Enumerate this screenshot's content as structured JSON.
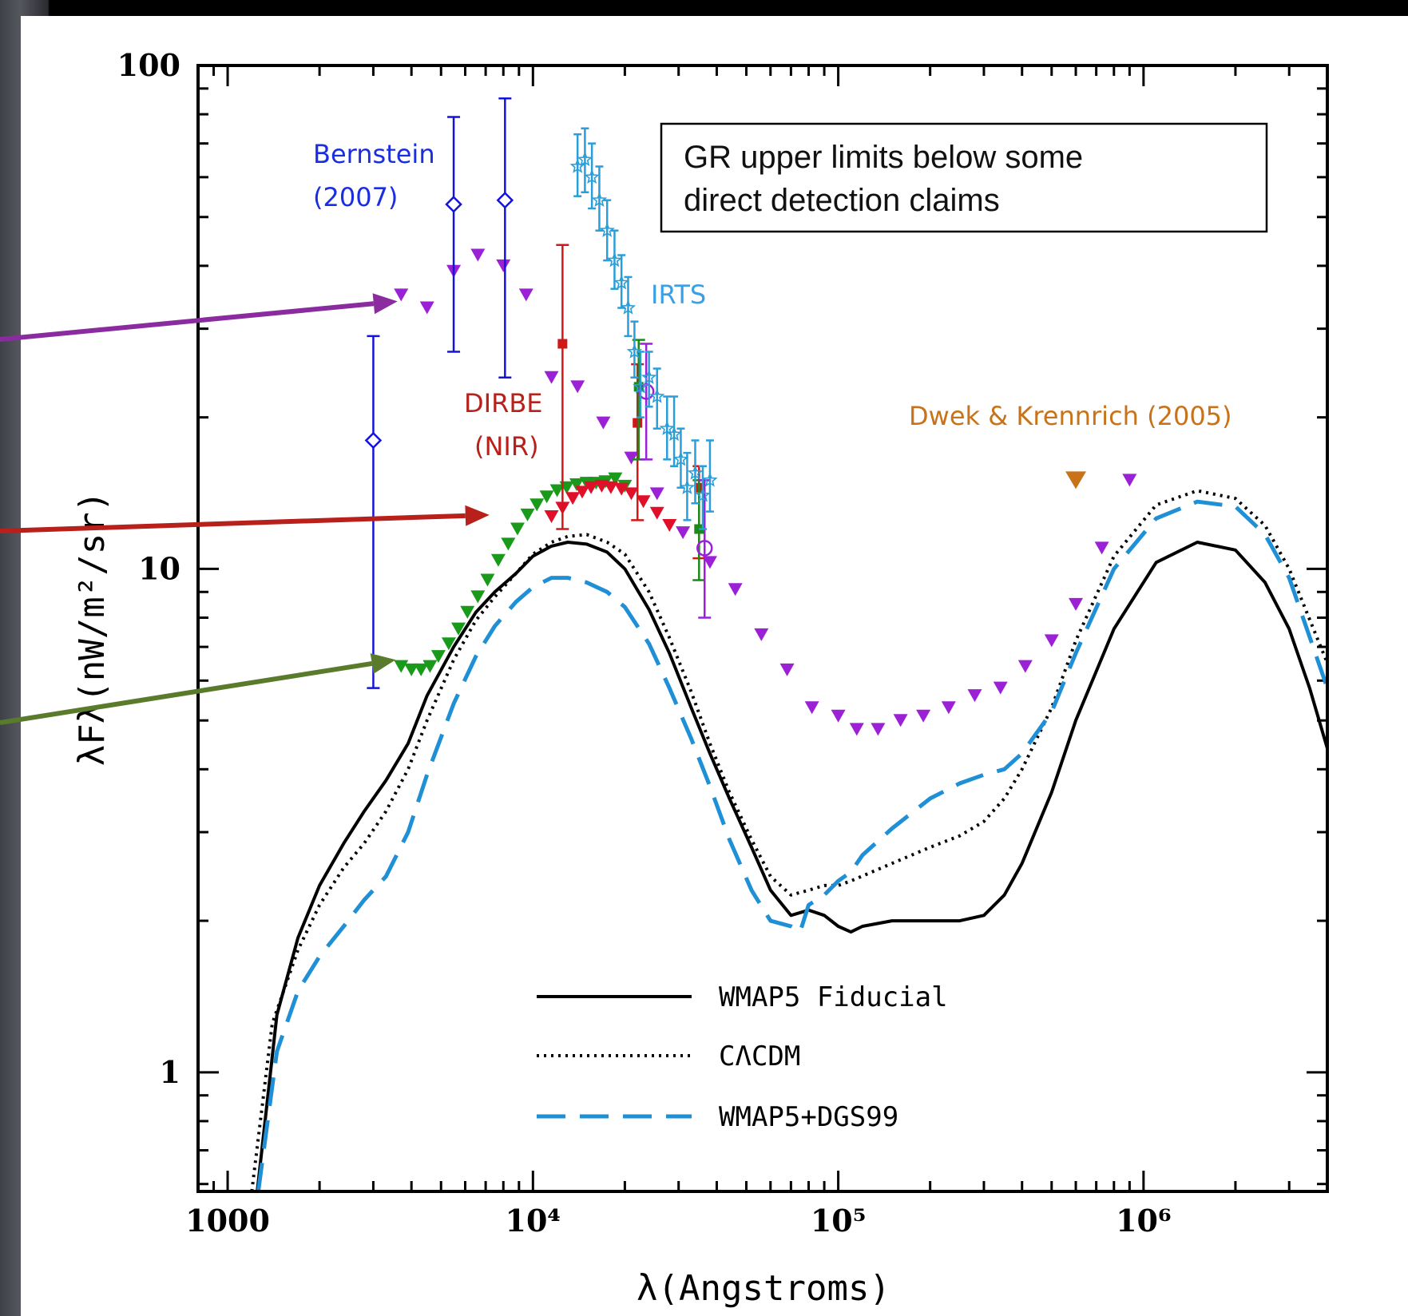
{
  "chart_data": {
    "type": "scatter",
    "title": "",
    "xlabel": "λ(Angstroms)",
    "ylabel": "λFλ(nW/m²/sr)",
    "xscale": "log",
    "yscale": "log",
    "xlim": [
      800,
      4000000
    ],
    "ylim": [
      0.58,
      100
    ],
    "xticks": [
      {
        "value": 1000,
        "label": "1000"
      },
      {
        "value": 10000,
        "label": "10⁴"
      },
      {
        "value": 100000,
        "label": "10⁵"
      },
      {
        "value": 1000000,
        "label": "10⁶"
      }
    ],
    "yticks": [
      {
        "value": 1,
        "label": "1"
      },
      {
        "value": 10,
        "label": "10"
      },
      {
        "value": 100,
        "label": "100"
      }
    ],
    "grid": false,
    "legend_position": "bottom-center",
    "series": [
      {
        "name": "WMAP5 Fiducial",
        "kind": "line",
        "style": "solid",
        "color": "#000000",
        "x": [
          1250,
          1450,
          1700,
          2000,
          2400,
          2800,
          3300,
          3900,
          4500,
          5500,
          6500,
          7500,
          8800,
          10000,
          11500,
          13000,
          15000,
          17500,
          20000,
          24000,
          28000,
          33000,
          38000,
          44000,
          52000,
          60000,
          70000,
          80000,
          90000,
          100000,
          110000,
          120000,
          150000,
          200000,
          250000,
          300000,
          350000,
          400000,
          500000,
          600000,
          800000,
          1100000,
          1500000,
          2000000,
          2500000,
          3000000,
          3500000,
          4000000
        ],
        "y": [
          0.58,
          1.3,
          1.85,
          2.35,
          2.85,
          3.3,
          3.8,
          4.5,
          5.6,
          7.0,
          8.2,
          9.0,
          9.8,
          10.6,
          11.1,
          11.3,
          11.2,
          10.8,
          10.0,
          8.3,
          6.8,
          5.3,
          4.3,
          3.5,
          2.8,
          2.3,
          2.05,
          2.1,
          2.05,
          1.95,
          1.9,
          1.95,
          2.0,
          2.0,
          2.0,
          2.05,
          2.25,
          2.6,
          3.6,
          5.0,
          7.6,
          10.3,
          11.3,
          10.9,
          9.4,
          7.6,
          5.8,
          4.4
        ]
      },
      {
        "name": "CΛCDM",
        "kind": "line",
        "style": "dotted",
        "color": "#000000",
        "x": [
          1200,
          1400,
          1700,
          2000,
          2400,
          2800,
          3300,
          3900,
          4500,
          5500,
          6500,
          7500,
          8800,
          10000,
          11500,
          13000,
          15000,
          17500,
          20000,
          24000,
          28000,
          33000,
          38000,
          44000,
          52000,
          60000,
          70000,
          80000,
          90000,
          100000,
          110000,
          150000,
          200000,
          250000,
          300000,
          350000,
          400000,
          500000,
          600000,
          800000,
          1100000,
          1500000,
          2000000,
          2500000,
          3000000,
          4000000
        ],
        "y": [
          0.58,
          1.25,
          1.75,
          2.15,
          2.55,
          2.85,
          3.3,
          4.0,
          5.0,
          6.6,
          7.9,
          8.8,
          9.8,
          10.7,
          11.3,
          11.6,
          11.7,
          11.3,
          10.7,
          9.0,
          7.3,
          5.7,
          4.5,
          3.6,
          2.9,
          2.45,
          2.25,
          2.3,
          2.35,
          2.35,
          2.4,
          2.6,
          2.8,
          2.95,
          3.15,
          3.5,
          4.0,
          5.3,
          7.2,
          10.6,
          13.4,
          14.3,
          13.8,
          12.2,
          10.0,
          6.5
        ]
      },
      {
        "name": "WMAP5+DGS99",
        "kind": "line",
        "style": "dashed",
        "color": "#1f8fd6",
        "x": [
          1260,
          1450,
          1700,
          2000,
          2400,
          2800,
          3300,
          3900,
          4500,
          5500,
          6500,
          7500,
          8800,
          10000,
          11500,
          13000,
          15000,
          17500,
          20000,
          24000,
          28000,
          33000,
          38000,
          44000,
          52000,
          60000,
          70000,
          75000,
          80000,
          90000,
          100000,
          110000,
          120000,
          150000,
          200000,
          250000,
          300000,
          350000,
          400000,
          500000,
          600000,
          800000,
          1100000,
          1500000,
          2000000,
          2500000,
          3000000,
          4000000
        ],
        "y": [
          0.58,
          1.1,
          1.45,
          1.7,
          1.95,
          2.2,
          2.45,
          3.0,
          3.9,
          5.4,
          6.7,
          7.7,
          8.6,
          9.2,
          9.6,
          9.6,
          9.4,
          9.0,
          8.4,
          7.1,
          5.8,
          4.6,
          3.7,
          2.9,
          2.3,
          2.0,
          1.95,
          1.9,
          2.15,
          2.25,
          2.4,
          2.5,
          2.7,
          3.05,
          3.5,
          3.75,
          3.9,
          4.0,
          4.3,
          5.2,
          6.8,
          10.0,
          12.6,
          13.6,
          13.3,
          11.7,
          9.6,
          5.8
        ]
      },
      {
        "name": "",
        "kind": "markers",
        "marker": "triangle-down",
        "color": "#9a21d6",
        "x": [
          3700,
          4500,
          5500,
          6600,
          8000,
          9500,
          11500,
          14000,
          17000,
          21000,
          25500,
          31000,
          38000,
          46000,
          56000,
          68000,
          82000,
          100000,
          115000,
          135000,
          160000,
          190000,
          230000,
          280000,
          340000,
          410000,
          500000,
          600000,
          730000,
          900000
        ],
        "y": [
          35,
          33,
          39,
          42,
          40,
          35,
          24,
          23,
          19.5,
          16.6,
          14.1,
          11.8,
          10.3,
          9.1,
          7.4,
          6.3,
          5.3,
          5.1,
          4.8,
          4.8,
          5.0,
          5.1,
          5.3,
          5.6,
          5.8,
          6.4,
          7.2,
          8.5,
          11.0,
          15.0
        ]
      },
      {
        "name": "",
        "kind": "markers",
        "marker": "triangle-down",
        "color": "#1a9a1a",
        "x": [
          3700,
          4000,
          4300,
          4600,
          4900,
          5300,
          5700,
          6100,
          6600,
          7100,
          7700,
          8300,
          8900,
          9600,
          10300,
          11100,
          12000,
          12900,
          13900,
          15000,
          16100,
          17300,
          18600,
          20000
        ],
        "y": [
          6.4,
          6.3,
          6.3,
          6.4,
          6.7,
          7.1,
          7.6,
          8.2,
          8.8,
          9.5,
          10.4,
          11.2,
          12.0,
          12.8,
          13.4,
          13.9,
          14.3,
          14.5,
          14.7,
          14.8,
          14.8,
          14.9,
          15.1,
          14.6
        ]
      },
      {
        "name": "",
        "kind": "markers",
        "marker": "triangle-down",
        "color": "#e0102a",
        "x": [
          11500,
          12500,
          13500,
          14500,
          15500,
          16800,
          18000,
          19500,
          21000,
          23000,
          25500,
          28000
        ],
        "y": [
          12.7,
          13.2,
          13.8,
          14.2,
          14.5,
          14.6,
          14.5,
          14.4,
          14.1,
          13.6,
          12.9,
          12.2
        ]
      },
      {
        "name": "Bernstein (2007)",
        "kind": "errorbar",
        "marker": "diamond-open",
        "color": "#1414d8",
        "points": [
          {
            "x": 3000,
            "y": 18,
            "low": 5.8,
            "high": 29
          },
          {
            "x": 5500,
            "y": 53,
            "low": 27,
            "high": 79
          },
          {
            "x": 8100,
            "y": 54,
            "low": 24,
            "high": 86
          }
        ]
      },
      {
        "name": "DIRBE (NIR)",
        "kind": "errorbar",
        "marker": "square",
        "color": "#d01818",
        "points": [
          {
            "x": 12500,
            "y": 28,
            "low": 12,
            "high": 44
          },
          {
            "x": 22000,
            "y": 19.5,
            "low": 12.5,
            "high": 25.5
          },
          {
            "x": 35000,
            "y": 14.5,
            "low": 10.5,
            "high": 16
          }
        ]
      },
      {
        "name": "",
        "kind": "errorbar",
        "marker": "square",
        "color": "#1a8a1a",
        "points": [
          {
            "x": 22200,
            "y": 23,
            "low": 16.5,
            "high": 28.5
          },
          {
            "x": 35000,
            "y": 12,
            "low": 9.5,
            "high": 15
          }
        ]
      },
      {
        "name": "",
        "kind": "errorbar",
        "marker": "circle-open",
        "color": "#9a21d6",
        "points": [
          {
            "x": 23500,
            "y": 22.5,
            "low": 16.5,
            "high": 28
          },
          {
            "x": 36500,
            "y": 11,
            "low": 8,
            "high": 15
          }
        ]
      },
      {
        "name": "IRTS",
        "kind": "errorbar",
        "marker": "star",
        "color": "#2a9ed8",
        "points": [
          {
            "x": 14000,
            "y": 63,
            "low": 55,
            "high": 73
          },
          {
            "x": 14800,
            "y": 65,
            "low": 56,
            "high": 75
          },
          {
            "x": 15600,
            "y": 60,
            "low": 52,
            "high": 70
          },
          {
            "x": 16500,
            "y": 54,
            "low": 47,
            "high": 63
          },
          {
            "x": 17500,
            "y": 47,
            "low": 41,
            "high": 54
          },
          {
            "x": 18500,
            "y": 41,
            "low": 36,
            "high": 47
          },
          {
            "x": 19500,
            "y": 37,
            "low": 33,
            "high": 42
          },
          {
            "x": 20500,
            "y": 33,
            "low": 29,
            "high": 38
          },
          {
            "x": 21500,
            "y": 27,
            "low": 24,
            "high": 31
          },
          {
            "x": 22500,
            "y": 23,
            "low": 20,
            "high": 27
          },
          {
            "x": 24000,
            "y": 24,
            "low": 21,
            "high": 27
          },
          {
            "x": 25500,
            "y": 22,
            "low": 19,
            "high": 25
          },
          {
            "x": 27500,
            "y": 19,
            "low": 16.5,
            "high": 22
          },
          {
            "x": 29000,
            "y": 18.5,
            "low": 16,
            "high": 22
          },
          {
            "x": 30500,
            "y": 16.5,
            "low": 14.5,
            "high": 19
          },
          {
            "x": 32000,
            "y": 14.5,
            "low": 12.5,
            "high": 17
          },
          {
            "x": 34000,
            "y": 15.5,
            "low": 13.5,
            "high": 18
          },
          {
            "x": 36000,
            "y": 14,
            "low": 12,
            "high": 16
          },
          {
            "x": 38000,
            "y": 15,
            "low": 13,
            "high": 18
          }
        ]
      },
      {
        "name": "Dwek & Krennrich (2005)",
        "kind": "markers",
        "marker": "triangle-down",
        "color": "#c8731a",
        "x": [
          600000
        ],
        "y": [
          15
        ]
      }
    ],
    "annotations": {
      "bernstein": [
        "Bernstein",
        "(2007)"
      ],
      "dirbe": [
        "DIRBE",
        "(NIR)"
      ],
      "irts": "IRTS",
      "dwek": "Dwek & Krennrich (2005)",
      "note": [
        "GR upper limits below some",
        "direct detection claims"
      ]
    },
    "arrows": [
      {
        "color": "#8b2ba0",
        "target": {
          "x": 3600,
          "y": 34
        }
      },
      {
        "color": "#b8201c",
        "target": {
          "x": 7200,
          "y": 12.8
        }
      },
      {
        "color": "#5a7a2c",
        "target": {
          "x": 3550,
          "y": 6.6
        }
      }
    ]
  }
}
